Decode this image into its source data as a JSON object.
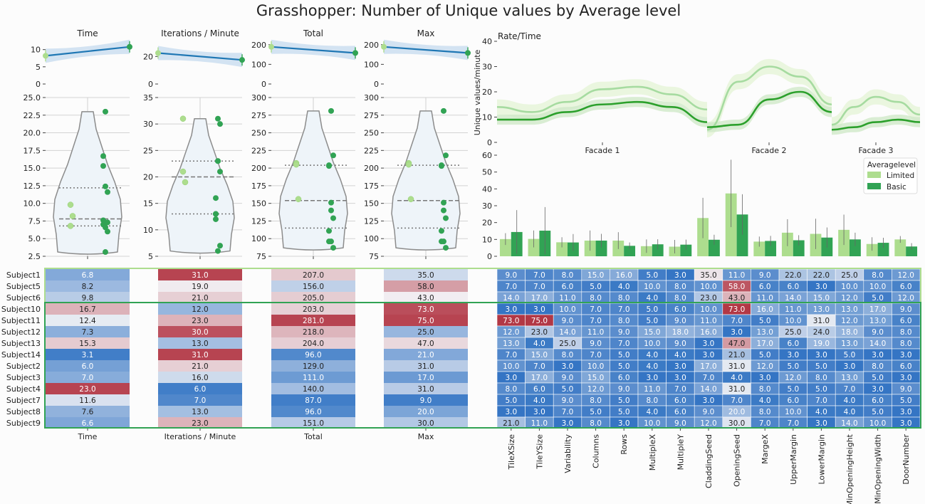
{
  "title": "Grasshopper: Number of Unique values by Average level",
  "colors": {
    "limited": "#addd8e",
    "basic": "#31a354",
    "reg_line": "#1f77b4",
    "reg_band": "#c6dbef",
    "violin_fill": "#eef4f9",
    "violin_edge": "#8c8c8c",
    "green_line": "#2ca02c",
    "light_line": "#a6dba0"
  },
  "top_panels": [
    {
      "title": "Time",
      "ylim": [
        0,
        12
      ],
      "yticks": [
        "0",
        "5",
        "10"
      ],
      "x": [
        1,
        2
      ],
      "y": [
        8.2,
        10.8
      ]
    },
    {
      "title": "Iterations / Minute",
      "ylim": [
        0,
        30
      ],
      "yticks": [
        "0",
        "20"
      ],
      "x": [
        1,
        2
      ],
      "y": [
        22.5,
        17.5
      ]
    },
    {
      "title": "Total",
      "ylim": [
        0,
        210
      ],
      "yticks": [
        "0",
        "100",
        "200"
      ],
      "x": [
        1,
        2
      ],
      "y": [
        189,
        158
      ]
    },
    {
      "title": "Max",
      "ylim": [
        0,
        210
      ],
      "yticks": [
        "0",
        "100",
        "200"
      ],
      "x": [
        1,
        2
      ],
      "y": [
        189,
        158
      ]
    }
  ],
  "violin_panels": [
    {
      "ylim": [
        2.5,
        25.0
      ],
      "yticks": [
        "2.5",
        "5.0",
        "7.5",
        "10.0",
        "12.5",
        "15.0",
        "17.5",
        "20.0",
        "22.5",
        "25.0"
      ],
      "limited": [
        6.8,
        8.2,
        9.8
      ],
      "basic": [
        16.7,
        12.4,
        7.3,
        15.3,
        3.1,
        6.0,
        7.0,
        23.0,
        11.6,
        7.6,
        6.6
      ],
      "quartiles": [
        6.8,
        7.8,
        12.2
      ]
    },
    {
      "ylim": [
        5,
        35
      ],
      "yticks": [
        "5",
        "10",
        "15",
        "20",
        "25",
        "30",
        "35"
      ],
      "limited": [
        31.0,
        19.0,
        21.0
      ],
      "basic": [
        12.0,
        23.0,
        30.0,
        13.0,
        31.0,
        21.0,
        16.0,
        6.0,
        7.0,
        13.0,
        23.0
      ],
      "quartiles": [
        13.0,
        20.0,
        23.0
      ]
    },
    {
      "ylim": [
        75,
        300
      ],
      "yticks": [
        "75",
        "100",
        "125",
        "150",
        "175",
        "200",
        "225",
        "250",
        "275",
        "300"
      ],
      "limited": [
        207.0,
        156.0,
        205.0
      ],
      "basic": [
        203.0,
        281.0,
        218.0,
        204.0,
        96.0,
        129.0,
        111.0,
        140.0,
        87.0,
        96.0,
        151.0
      ],
      "quartiles": [
        115.0,
        154.0,
        204.0
      ]
    },
    {
      "ylim": [
        75,
        300
      ],
      "yticks": [
        "75",
        "100",
        "125",
        "150",
        "175",
        "200",
        "225",
        "250",
        "275",
        "300"
      ],
      "limited": [
        207.0,
        156.0,
        205.0
      ],
      "basic": [
        203.0,
        281.0,
        218.0,
        204.0,
        96.0,
        129.0,
        111.0,
        140.0,
        87.0,
        96.0,
        151.0
      ],
      "quartiles": [
        115.0,
        154.0,
        204.0
      ]
    }
  ],
  "rate_chart": {
    "title": "Rate/Time",
    "ylabel": "Unique values/minute",
    "ylim": [
      0,
      40
    ],
    "yticks": [
      "0",
      "10",
      "20",
      "30",
      "40"
    ],
    "segments": [
      "Facade 1",
      "Facade 2",
      "Facade 3"
    ],
    "limited": [
      [
        14,
        12,
        16,
        21,
        22,
        19,
        13
      ],
      [
        5,
        24,
        30,
        26,
        15
      ],
      [
        7,
        14,
        18,
        16,
        11
      ]
    ],
    "basic": [
      [
        9,
        9,
        12,
        15,
        16,
        14,
        8
      ],
      [
        6,
        7,
        17,
        20,
        12
      ],
      [
        5,
        6,
        8,
        9,
        8
      ]
    ]
  },
  "bar_chart": {
    "ylim": [
      0,
      60
    ],
    "yticks": [
      "0",
      "10",
      "20",
      "30",
      "40",
      "50",
      "60"
    ],
    "legend_title": "Averagelevel",
    "legend": [
      "Limited",
      "Basic"
    ],
    "legend_position": "upper right",
    "categories": [
      "TileXSize",
      "TileYSize",
      "Variability",
      "Columns",
      "Rows",
      "MultipleX",
      "MultipleY",
      "CladdingSeed",
      "OpeningSeed",
      "MargeX",
      "UpperMargin",
      "LowerMargin",
      "MinOpeningHeight",
      "MinOpeningWidth",
      "DoorNumber"
    ],
    "limited": [
      10.2,
      10.3,
      8.3,
      9.3,
      9.3,
      6.0,
      5.7,
      22.7,
      37.3,
      8.7,
      14.0,
      13.3,
      15.7,
      7.3,
      10.0
    ],
    "basic": [
      14.4,
      15.2,
      8.2,
      9.3,
      6.2,
      7.1,
      6.9,
      9.8,
      24.8,
      9.1,
      9.5,
      11.1,
      10.0,
      8.0,
      5.8
    ],
    "limited_err": [
      3.5,
      5,
      3,
      6,
      5,
      4,
      4,
      12,
      20,
      3,
      8,
      9,
      9,
      4,
      2
    ],
    "basic_err": [
      13,
      14,
      5,
      4,
      2,
      3,
      3,
      3,
      12,
      3,
      3,
      6,
      4,
      3,
      2
    ]
  },
  "heatmap": {
    "rows": [
      "Subject1",
      "Subject5",
      "Subject6",
      "Subject10",
      "Subject11",
      "Subject12",
      "Subject13",
      "Subject14",
      "Subject2",
      "Subject3",
      "Subject4",
      "Subject7",
      "Subject8",
      "Subject9"
    ],
    "metric_cols": [
      "Time",
      "Iterations / Minute",
      "Total",
      "Max"
    ],
    "metric_values": [
      [
        "6.8",
        "31.0",
        "207.0",
        "35.0"
      ],
      [
        "8.2",
        "19.0",
        "156.0",
        "58.0"
      ],
      [
        "9.8",
        "21.0",
        "205.0",
        "43.0"
      ],
      [
        "16.7",
        "12.0",
        "203.0",
        "73.0"
      ],
      [
        "12.4",
        "23.0",
        "281.0",
        "75.0"
      ],
      [
        "7.3",
        "30.0",
        "218.0",
        "25.0"
      ],
      [
        "15.3",
        "13.0",
        "204.0",
        "47.0"
      ],
      [
        "3.1",
        "31.0",
        "96.0",
        "21.0"
      ],
      [
        "6.0",
        "21.0",
        "129.0",
        "31.0"
      ],
      [
        "7.0",
        "16.0",
        "111.0",
        "17.0"
      ],
      [
        "23.0",
        "6.0",
        "140.0",
        "31.0"
      ],
      [
        "11.6",
        "7.0",
        "87.0",
        "9.0"
      ],
      [
        "7.6",
        "13.0",
        "96.0",
        "20.0"
      ],
      [
        "6.6",
        "23.0",
        "151.0",
        "30.0"
      ]
    ],
    "param_cols": [
      "TileXSize",
      "TileYSize",
      "Variability",
      "Columns",
      "Rows",
      "MultipleX",
      "MultipleY",
      "CladdingSeed",
      "OpeningSeed",
      "MargeX",
      "UpperMargin",
      "LowerMargin",
      "MinOpeningHeight",
      "MinOpeningWidth",
      "DoorNumber"
    ],
    "param_values": [
      [
        "9.0",
        "7.0",
        "8.0",
        "15.0",
        "16.0",
        "5.0",
        "3.0",
        "35.0",
        "11.0",
        "9.0",
        "22.0",
        "22.0",
        "25.0",
        "8.0",
        "12.0"
      ],
      [
        "7.0",
        "7.0",
        "6.0",
        "5.0",
        "4.0",
        "10.0",
        "8.0",
        "10.0",
        "58.0",
        "6.0",
        "6.0",
        "3.0",
        "10.0",
        "10.0",
        "6.0"
      ],
      [
        "14.0",
        "17.0",
        "11.0",
        "8.0",
        "8.0",
        "4.0",
        "8.0",
        "23.0",
        "43.0",
        "11.0",
        "14.0",
        "15.0",
        "12.0",
        "5.0",
        "12.0"
      ],
      [
        "3.0",
        "3.0",
        "10.0",
        "7.0",
        "7.0",
        "5.0",
        "6.0",
        "10.0",
        "73.0",
        "16.0",
        "11.0",
        "13.0",
        "13.0",
        "17.0",
        "9.0"
      ],
      [
        "73.0",
        "75.0",
        "9.0",
        "7.0",
        "8.0",
        "5.0",
        "9.0",
        "11.0",
        "7.0",
        "5.0",
        "10.0",
        "31.0",
        "12.0",
        "13.0",
        "6.0"
      ],
      [
        "12.0",
        "23.0",
        "14.0",
        "11.0",
        "9.0",
        "15.0",
        "18.0",
        "16.0",
        "3.0",
        "13.0",
        "25.0",
        "24.0",
        "18.0",
        "9.0",
        "8.0"
      ],
      [
        "13.0",
        "4.0",
        "25.0",
        "9.0",
        "7.0",
        "10.0",
        "9.0",
        "3.0",
        "47.0",
        "17.0",
        "6.0",
        "19.0",
        "13.0",
        "14.0",
        "8.0"
      ],
      [
        "7.0",
        "15.0",
        "8.0",
        "7.0",
        "5.0",
        "4.0",
        "4.0",
        "3.0",
        "21.0",
        "5.0",
        "3.0",
        "3.0",
        "5.0",
        "3.0",
        "3.0"
      ],
      [
        "10.0",
        "7.0",
        "3.0",
        "10.0",
        "5.0",
        "4.0",
        "3.0",
        "17.0",
        "31.0",
        "12.0",
        "5.0",
        "5.0",
        "3.0",
        "8.0",
        "6.0"
      ],
      [
        "3.0",
        "17.0",
        "9.0",
        "15.0",
        "6.0",
        "3.0",
        "3.0",
        "7.0",
        "4.0",
        "3.0",
        "12.0",
        "8.0",
        "13.0",
        "5.0",
        "3.0"
      ],
      [
        "8.0",
        "6.0",
        "5.0",
        "12.0",
        "9.0",
        "11.0",
        "7.0",
        "14.0",
        "31.0",
        "8.0",
        "5.0",
        "5.0",
        "7.0",
        "3.0",
        "9.0"
      ],
      [
        "5.0",
        "4.0",
        "9.0",
        "8.0",
        "5.0",
        "8.0",
        "6.0",
        "3.0",
        "7.0",
        "4.0",
        "6.0",
        "7.0",
        "4.0",
        "6.0",
        "5.0"
      ],
      [
        "3.0",
        "3.0",
        "7.0",
        "5.0",
        "5.0",
        "4.0",
        "6.0",
        "9.0",
        "20.0",
        "8.0",
        "10.0",
        "4.0",
        "4.0",
        "5.0",
        "3.0"
      ],
      [
        "21.0",
        "11.0",
        "3.0",
        "8.0",
        "3.0",
        "10.0",
        "9.0",
        "12.0",
        "30.0",
        "7.0",
        "7.0",
        "3.0",
        "14.0",
        "10.0",
        "3.0"
      ]
    ]
  },
  "chart_data": [
    {
      "type": "line",
      "title": "Time",
      "x": [
        1,
        2
      ],
      "y": [
        8.2,
        10.8
      ],
      "ylim": [
        0,
        12
      ]
    },
    {
      "type": "line",
      "title": "Iterations / Minute",
      "x": [
        1,
        2
      ],
      "y": [
        22.5,
        17.5
      ],
      "ylim": [
        0,
        30
      ]
    },
    {
      "type": "line",
      "title": "Total",
      "x": [
        1,
        2
      ],
      "y": [
        189,
        158
      ],
      "ylim": [
        0,
        210
      ]
    },
    {
      "type": "line",
      "title": "Max",
      "x": [
        1,
        2
      ],
      "y": [
        189,
        158
      ],
      "ylim": [
        0,
        210
      ]
    },
    {
      "type": "line",
      "title": "Rate/Time",
      "ylabel": "Unique values/minute",
      "categories": [
        "Facade 1",
        "Facade 2",
        "Facade 3"
      ],
      "series": [
        {
          "name": "Limited",
          "values": [
            22,
            30,
            18
          ]
        },
        {
          "name": "Basic",
          "values": [
            16,
            20,
            9
          ]
        }
      ],
      "ylim": [
        0,
        40
      ]
    },
    {
      "type": "bar",
      "categories": [
        "TileXSize",
        "TileYSize",
        "Variability",
        "Columns",
        "Rows",
        "MultipleX",
        "MultipleY",
        "CladdingSeed",
        "OpeningSeed",
        "MargeX",
        "UpperMargin",
        "LowerMargin",
        "MinOpeningHeight",
        "MinOpeningWidth",
        "DoorNumber"
      ],
      "series": [
        {
          "name": "Limited",
          "values": [
            10.2,
            10.3,
            8.3,
            9.3,
            9.3,
            6.0,
            5.7,
            22.7,
            37.3,
            8.7,
            14.0,
            13.3,
            15.7,
            7.3,
            10.0
          ]
        },
        {
          "name": "Basic",
          "values": [
            14.4,
            15.2,
            8.2,
            9.3,
            6.2,
            7.1,
            6.9,
            9.8,
            24.8,
            9.1,
            9.5,
            11.1,
            10.0,
            8.0,
            5.8
          ]
        }
      ],
      "ylim": [
        0,
        60
      ],
      "legend": "upper right"
    },
    {
      "type": "heatmap",
      "rows": [
        "Subject1",
        "Subject5",
        "Subject6",
        "Subject10",
        "Subject11",
        "Subject12",
        "Subject13",
        "Subject14",
        "Subject2",
        "Subject3",
        "Subject4",
        "Subject7",
        "Subject8",
        "Subject9"
      ],
      "columns": [
        "Time",
        "Iterations / Minute",
        "Total",
        "Max",
        "TileXSize",
        "TileYSize",
        "Variability",
        "Columns",
        "Rows",
        "MultipleX",
        "MultipleY",
        "CladdingSeed",
        "OpeningSeed",
        "MargeX",
        "UpperMargin",
        "LowerMargin",
        "MinOpeningHeight",
        "MinOpeningWidth",
        "DoorNumber"
      ]
    }
  ]
}
